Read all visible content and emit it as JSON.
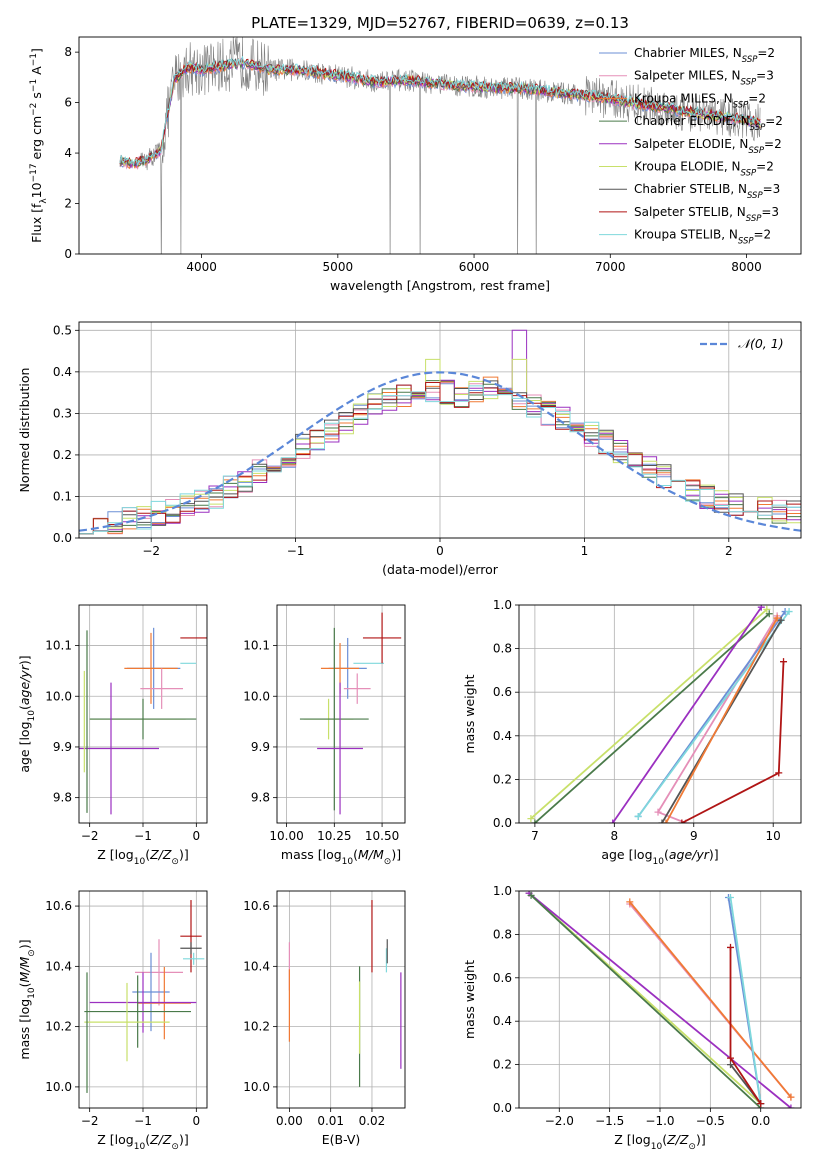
{
  "figure": {
    "title": "PLATE=1329, MJD=52767, FIBERID=0639, z=0.13"
  },
  "colors": {
    "chabrier_miles": "#6b8fd6",
    "salpeter_miles": "#e58fb8",
    "kroupa_miles": "#f07a35",
    "chabrier_elodie": "#4a7a4a",
    "salpeter_elodie": "#9b30c0",
    "kroupa_elodie": "#c8e06a",
    "chabrier_stelib": "#555555",
    "salpeter_stelib": "#b01515",
    "kroupa_stelib": "#7fd8dc",
    "data": "#808080",
    "normal": "#5b87d8"
  },
  "legend_models": [
    {
      "base": "Chabrier MILES",
      "n": "2",
      "color_key": "chabrier_miles"
    },
    {
      "base": "Salpeter MILES",
      "n": "3",
      "color_key": "salpeter_miles"
    },
    {
      "base": "Kroupa MILES",
      "n": "2",
      "color_key": "kroupa_miles"
    },
    {
      "base": "Chabrier ELODIE",
      "n": "2",
      "color_key": "chabrier_elodie"
    },
    {
      "base": "Salpeter ELODIE",
      "n": "2",
      "color_key": "salpeter_elodie"
    },
    {
      "base": "Kroupa ELODIE",
      "n": "2",
      "color_key": "kroupa_elodie"
    },
    {
      "base": "Chabrier STELIB",
      "n": "3",
      "color_key": "chabrier_stelib"
    },
    {
      "base": "Salpeter STELIB",
      "n": "3",
      "color_key": "salpeter_stelib"
    },
    {
      "base": "Kroupa STELIB",
      "n": "2",
      "color_key": "kroupa_stelib"
    }
  ],
  "chart_data": [
    {
      "id": "spectrum",
      "type": "line",
      "xlabel": "wavelength [Angstrom, rest frame]",
      "ylabel": "Flux [f_λ 10^-17 erg cm^-2 s^-1 A^-1]",
      "xlim": [
        3100,
        8400
      ],
      "ylim": [
        0,
        8.6
      ],
      "xticks": [
        4000,
        5000,
        6000,
        7000,
        8000
      ],
      "yticks": [
        0,
        2,
        4,
        6,
        8
      ],
      "grid": false,
      "legend": "top-right",
      "continuum_points": {
        "x": [
          3400,
          3500,
          3600,
          3700,
          3800,
          3900,
          4000,
          4100,
          4300,
          4500,
          4700,
          4900,
          5100,
          5300,
          5500,
          5800,
          6100,
          6400,
          6600,
          6800,
          7000,
          7200,
          7400,
          7600,
          7800,
          8000,
          8100
        ],
        "y": [
          3.7,
          3.55,
          3.75,
          4.1,
          6.9,
          7.4,
          7.3,
          7.4,
          7.6,
          7.3,
          7.3,
          7.15,
          7.0,
          6.8,
          6.9,
          6.7,
          6.6,
          6.55,
          6.4,
          6.3,
          6.15,
          5.95,
          5.8,
          5.6,
          5.45,
          5.3,
          5.2
        ]
      },
      "data_series": {
        "name": "data",
        "noise_amplitude": 1.5,
        "high_noise_range": [
          3550,
          4500
        ]
      }
    },
    {
      "id": "residuals",
      "type": "histogram",
      "xlabel": "(data-model)/error",
      "ylabel": "Normed distribution",
      "xlim": [
        -2.5,
        2.5
      ],
      "ylim": [
        0,
        0.52
      ],
      "xticks": [
        -2,
        -1,
        0,
        1,
        2
      ],
      "yticks": [
        0.0,
        0.1,
        0.2,
        0.3,
        0.4,
        0.5
      ],
      "grid": true,
      "bins": [
        -2.5,
        -2.4,
        -2.3,
        -2.2,
        -2.1,
        -2.0,
        -1.9,
        -1.8,
        -1.7,
        -1.6,
        -1.5,
        -1.4,
        -1.3,
        -1.2,
        -1.1,
        -1.0,
        -0.9,
        -0.8,
        -0.7,
        -0.6,
        -0.5,
        -0.4,
        -0.3,
        -0.2,
        -0.1,
        0.0,
        0.1,
        0.2,
        0.3,
        0.4,
        0.5,
        0.6,
        0.7,
        0.8,
        0.9,
        1.0,
        1.1,
        1.2,
        1.3,
        1.4,
        1.5,
        1.6,
        1.7,
        1.8,
        1.9,
        2.0,
        2.1,
        2.2,
        2.3,
        2.4,
        2.5
      ],
      "base_values": [
        0.03,
        0.025,
        0.035,
        0.045,
        0.05,
        0.06,
        0.065,
        0.08,
        0.085,
        0.1,
        0.12,
        0.14,
        0.16,
        0.18,
        0.2,
        0.22,
        0.24,
        0.26,
        0.28,
        0.3,
        0.32,
        0.33,
        0.34,
        0.34,
        0.35,
        0.35,
        0.34,
        0.35,
        0.36,
        0.34,
        0.33,
        0.32,
        0.3,
        0.29,
        0.27,
        0.25,
        0.23,
        0.21,
        0.19,
        0.17,
        0.15,
        0.13,
        0.11,
        0.1,
        0.09,
        0.08,
        0.075,
        0.07,
        0.065,
        0.06
      ],
      "peaks": {
        "salpeter_elodie_bin_0_5": 0.5,
        "kroupa_elodie_bin_neg0_1": 0.43
      },
      "normal_curve": {
        "name": "𝒩(0, 1)",
        "mean": 0,
        "std": 1
      }
    },
    {
      "id": "age_vs_Z",
      "type": "errorbar",
      "xlabel": "Z [log10(Z/Z⊙)]",
      "ylabel": "age [log10(age/yr)]",
      "xlim": [
        -2.2,
        0.2
      ],
      "ylim": [
        9.75,
        10.18
      ],
      "xticks": [
        -2,
        -1,
        0
      ],
      "yticks": [
        9.8,
        9.9,
        10.0,
        10.1
      ],
      "grid": true
    },
    {
      "id": "mass_vs_mass",
      "type": "errorbar",
      "xlabel": "mass [log10(M/M⊙)]",
      "xlim": [
        9.95,
        10.62
      ],
      "ylim": [
        9.75,
        10.18
      ],
      "xticks": [
        10.0,
        10.25,
        10.5
      ],
      "yticks": [
        9.8,
        9.9,
        10.0,
        10.1
      ],
      "grid": true
    },
    {
      "id": "weight_vs_age",
      "type": "line",
      "xlabel": "age [log10(age/yr)]",
      "ylabel": "mass weight",
      "xlim": [
        6.8,
        10.35
      ],
      "ylim": [
        0,
        1
      ],
      "xticks": [
        7,
        8,
        9,
        10
      ],
      "yticks": [
        0.0,
        0.2,
        0.4,
        0.6,
        0.8,
        1.0
      ],
      "grid": true,
      "series": [
        {
          "color_key": "kroupa_elodie",
          "x": [
            6.95,
            9.92
          ],
          "y": [
            0.02,
            0.98
          ]
        },
        {
          "color_key": "chabrier_elodie",
          "x": [
            7.0,
            9.95
          ],
          "y": [
            0.0,
            0.96
          ]
        },
        {
          "color_key": "salpeter_elodie",
          "x": [
            7.98,
            9.85
          ],
          "y": [
            0.0,
            0.99
          ]
        },
        {
          "color_key": "salpeter_miles",
          "x": [
            8.9,
            8.55,
            10.05
          ],
          "y": [
            0.0,
            0.05,
            0.95
          ]
        },
        {
          "color_key": "chabrier_miles",
          "x": [
            8.3,
            10.15
          ],
          "y": [
            0.03,
            0.97
          ]
        },
        {
          "color_key": "kroupa_stelib",
          "x": [
            8.3,
            10.2
          ],
          "y": [
            0.03,
            0.97
          ]
        },
        {
          "color_key": "chabrier_stelib",
          "x": [
            8.6,
            10.1
          ],
          "y": [
            0.0,
            0.93
          ]
        },
        {
          "color_key": "kroupa_miles",
          "x": [
            8.65,
            10.05
          ],
          "y": [
            0.0,
            0.94
          ]
        },
        {
          "color_key": "salpeter_stelib",
          "x": [
            8.85,
            10.07,
            10.13
          ],
          "y": [
            0.0,
            0.23,
            0.74
          ]
        }
      ]
    },
    {
      "id": "mass_vs_Z",
      "type": "errorbar",
      "xlabel": "Z [log10(Z/Z⊙)]",
      "ylabel": "mass [log10(M/M⊙)]",
      "xlim": [
        -2.2,
        0.2
      ],
      "ylim": [
        9.93,
        10.65
      ],
      "xticks": [
        -2,
        -1,
        0
      ],
      "yticks": [
        10.0,
        10.2,
        10.4,
        10.6
      ],
      "grid": true
    },
    {
      "id": "mass_vs_ebv",
      "type": "errorbar",
      "xlabel": "E(B-V)",
      "xlim": [
        -0.003,
        0.028
      ],
      "ylim": [
        9.93,
        10.65
      ],
      "xticks": [
        0.0,
        0.01,
        0.02
      ],
      "yticks": [
        10.0,
        10.2,
        10.4,
        10.6
      ],
      "grid": true
    },
    {
      "id": "weight_vs_Z",
      "type": "line",
      "xlabel": "Z [log10(Z/Z⊙)]",
      "ylabel": "mass weight",
      "xlim": [
        -2.4,
        0.4
      ],
      "ylim": [
        0,
        1
      ],
      "xticks": [
        -2.0,
        -1.5,
        -1.0,
        -0.5,
        0.0
      ],
      "yticks": [
        0.0,
        0.2,
        0.4,
        0.6,
        0.8,
        1.0
      ],
      "grid": true,
      "series": [
        {
          "color_key": "kroupa_elodie",
          "x": [
            -2.3,
            0.0
          ],
          "y": [
            0.99,
            0.02
          ]
        },
        {
          "color_key": "salpeter_elodie",
          "x": [
            -2.3,
            0.3
          ],
          "y": [
            0.99,
            0.0
          ]
        },
        {
          "color_key": "chabrier_elodie",
          "x": [
            -2.28,
            0.0
          ],
          "y": [
            0.98,
            0.0
          ]
        },
        {
          "color_key": "salpeter_miles",
          "x": [
            -1.3,
            0.3
          ],
          "y": [
            0.94,
            0.05
          ]
        },
        {
          "color_key": "kroupa_miles",
          "x": [
            -1.3,
            0.3
          ],
          "y": [
            0.95,
            0.05
          ]
        },
        {
          "color_key": "chabrier_miles",
          "x": [
            -0.32,
            0.0
          ],
          "y": [
            0.97,
            0.02
          ]
        },
        {
          "color_key": "kroupa_stelib",
          "x": [
            -0.3,
            0.0
          ],
          "y": [
            0.97,
            0.02
          ]
        },
        {
          "color_key": "chabrier_stelib",
          "x": [
            -0.3,
            0.0
          ],
          "y": [
            0.2,
            0.02
          ]
        },
        {
          "color_key": "salpeter_stelib",
          "x": [
            -0.3,
            -0.3,
            0.0
          ],
          "y": [
            0.74,
            0.23,
            0.02
          ]
        }
      ]
    }
  ],
  "errorbars": {
    "age_Z": [
      {
        "c": "kroupa_stelib",
        "x": -0.15,
        "xe": [
          0.15,
          0.15
        ],
        "y": 10.065,
        "ye": [
          0,
          0
        ],
        "step": true
      },
      {
        "c": "salpeter_stelib",
        "x": -0.05,
        "xe": [
          0.25,
          0.25
        ],
        "y": 10.115,
        "ye": [
          0,
          0
        ]
      },
      {
        "c": "chabrier_miles",
        "x": -0.8,
        "xe": [
          0.5,
          0.5
        ],
        "y": 10.055,
        "ye": [
          0.08,
          0.08
        ]
      },
      {
        "c": "kroupa_miles",
        "x": -0.85,
        "xe": [
          0.5,
          0.5
        ],
        "y": 10.055,
        "ye": [
          0.07,
          0.07
        ]
      },
      {
        "c": "salpeter_miles",
        "x": -0.65,
        "xe": [
          0.4,
          0.4
        ],
        "y": 10.015,
        "ye": [
          0.04,
          0.04
        ]
      },
      {
        "c": "kroupa_elodie",
        "x": -1.1,
        "xe": [
          0.9,
          0.9
        ],
        "y": 9.955,
        "ye": [
          0,
          0
        ]
      },
      {
        "c": "chabrier_elodie",
        "x": -1.0,
        "xe": [
          1.0,
          1.0
        ],
        "y": 9.955,
        "ye": [
          0.04,
          0.04
        ]
      },
      {
        "c": "salpeter_elodie",
        "x": -1.6,
        "xe": [
          0.9,
          0.9
        ],
        "y": 9.897,
        "ye": [
          0.13,
          0.13
        ]
      },
      {
        "c": "chabrier_elodie",
        "x": -2.05,
        "xe": [
          0.0,
          0.0
        ],
        "y": 9.95,
        "ye": [
          0.18,
          0.18
        ]
      },
      {
        "c": "kroupa_elodie",
        "x": -2.1,
        "xe": [
          0.0,
          0.0
        ],
        "y": 9.95,
        "ye": [
          0.1,
          0.1
        ]
      }
    ],
    "age_mass": [
      {
        "c": "kroupa_stelib",
        "x": 10.43,
        "xe": [
          0.08,
          0.08
        ],
        "y": 10.065,
        "ye": [
          0,
          0
        ]
      },
      {
        "c": "salpeter_stelib",
        "x": 10.5,
        "xe": [
          0.1,
          0.1
        ],
        "y": 10.115,
        "ye": [
          0.05,
          0.05
        ]
      },
      {
        "c": "chabrier_miles",
        "x": 10.32,
        "xe": [
          0.1,
          0.1
        ],
        "y": 10.055,
        "ye": [
          0.06,
          0.06
        ]
      },
      {
        "c": "kroupa_miles",
        "x": 10.28,
        "xe": [
          0.1,
          0.1
        ],
        "y": 10.055,
        "ye": [
          0.05,
          0.05
        ]
      },
      {
        "c": "salpeter_miles",
        "x": 10.37,
        "xe": [
          0.07,
          0.07
        ],
        "y": 10.015,
        "ye": [
          0.03,
          0.03
        ]
      },
      {
        "c": "kroupa_elodie",
        "x": 10.22,
        "xe": [
          0.13,
          0.13
        ],
        "y": 9.955,
        "ye": [
          0.04,
          0.04
        ]
      },
      {
        "c": "chabrier_elodie",
        "x": 10.25,
        "xe": [
          0.18,
          0.18
        ],
        "y": 9.955,
        "ye": [
          0.18,
          0.18
        ]
      },
      {
        "c": "salpeter_elodie",
        "x": 10.28,
        "xe": [
          0.12,
          0.12
        ],
        "y": 9.897,
        "ye": [
          0.13,
          0.13
        ]
      }
    ],
    "mass_Z": [
      {
        "c": "salpeter_stelib",
        "x": -0.1,
        "xe": [
          0.2,
          0.2
        ],
        "y": 10.5,
        "ye": [
          0.12,
          0.12
        ]
      },
      {
        "c": "chabrier_stelib",
        "x": -0.1,
        "xe": [
          0.2,
          0.2
        ],
        "y": 10.46,
        "ye": [
          0.02,
          0.02
        ]
      },
      {
        "c": "kroupa_stelib",
        "x": -0.05,
        "xe": [
          0.2,
          0.2
        ],
        "y": 10.425,
        "ye": [
          0.02,
          0.02
        ]
      },
      {
        "c": "salpeter_miles",
        "x": -0.7,
        "xe": [
          0.45,
          0.45
        ],
        "y": 10.38,
        "ye": [
          0.11,
          0.11
        ]
      },
      {
        "c": "chabrier_miles",
        "x": -0.85,
        "xe": [
          0.35,
          0.35
        ],
        "y": 10.315,
        "ye": [
          0.13,
          0.13
        ]
      },
      {
        "c": "kroupa_miles",
        "x": -0.6,
        "xe": [
          0.5,
          0.5
        ],
        "y": 10.278,
        "ye": [
          0.12,
          0.12
        ]
      },
      {
        "c": "salpeter_elodie",
        "x": -1.0,
        "xe": [
          1.0,
          1.0
        ],
        "y": 10.28,
        "ye": [
          0.1,
          0.1
        ]
      },
      {
        "c": "chabrier_elodie",
        "x": -1.1,
        "xe": [
          1.0,
          1.0
        ],
        "y": 10.25,
        "ye": [
          0.12,
          0.12
        ]
      },
      {
        "c": "kroupa_elodie",
        "x": -1.3,
        "xe": [
          0.8,
          0.8
        ],
        "y": 10.215,
        "ye": [
          0.13,
          0.13
        ]
      },
      {
        "c": "chabrier_elodie",
        "x": -2.05,
        "xe": [
          0.0,
          0.0
        ],
        "y": 10.18,
        "ye": [
          0.2,
          0.2
        ]
      }
    ],
    "mass_ebv": [
      {
        "c": "salpeter_miles",
        "x": 0.0,
        "y": 10.4,
        "ye": [
          0.08,
          0.08
        ]
      },
      {
        "c": "kroupa_miles",
        "x": 0.0,
        "y": 10.27,
        "ye": [
          0.12,
          0.12
        ]
      },
      {
        "c": "chabrier_elodie",
        "x": 0.017,
        "y": 10.2,
        "ye": [
          0.2,
          0.2
        ]
      },
      {
        "c": "kroupa_elodie",
        "x": 0.017,
        "y": 10.23,
        "ye": [
          0.12,
          0.12
        ]
      },
      {
        "c": "salpeter_stelib",
        "x": 0.02,
        "y": 10.5,
        "ye": [
          0.12,
          0.12
        ]
      },
      {
        "c": "kroupa_stelib",
        "x": 0.0235,
        "y": 10.42,
        "ye": [
          0.04,
          0.04
        ]
      },
      {
        "c": "chabrier_stelib",
        "x": 0.0237,
        "y": 10.45,
        "ye": [
          0.04,
          0.04
        ]
      },
      {
        "c": "salpeter_elodie",
        "x": 0.027,
        "y": 10.22,
        "ye": [
          0.16,
          0.16
        ]
      }
    ]
  }
}
